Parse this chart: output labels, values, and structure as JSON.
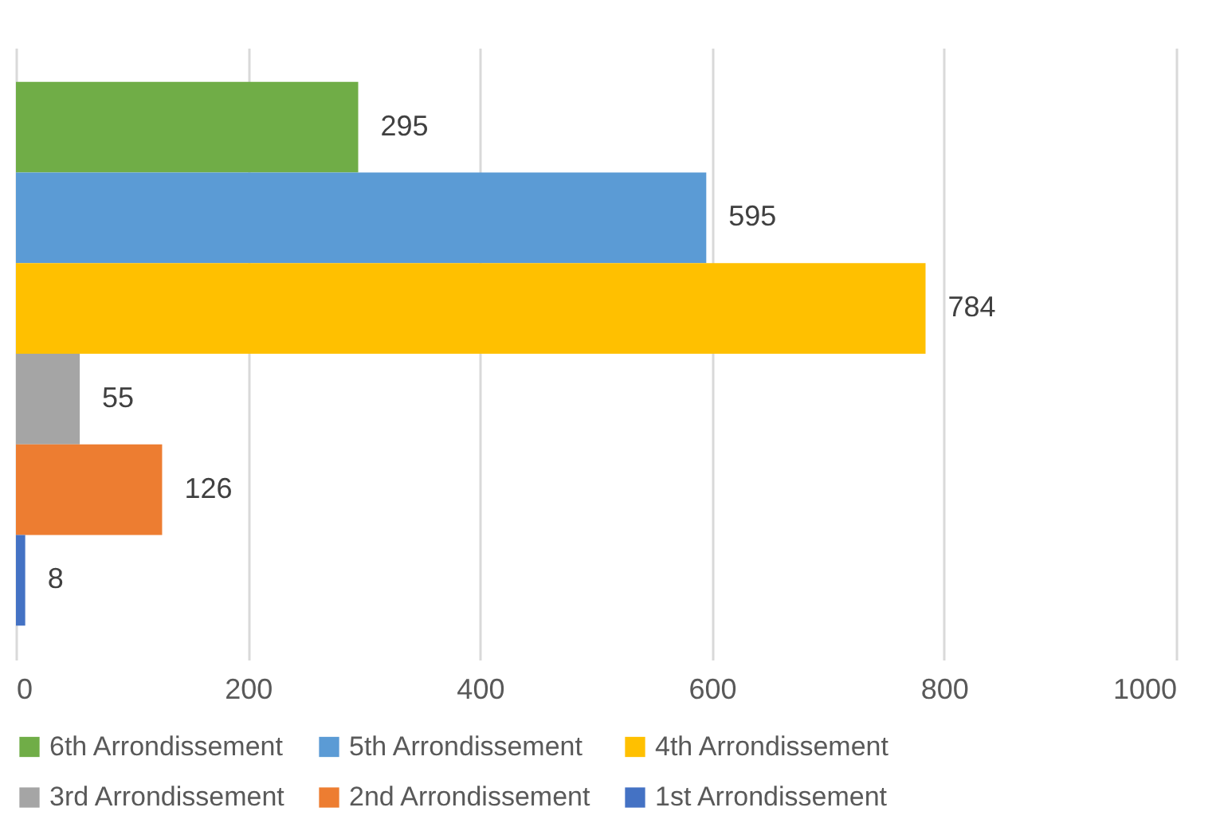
{
  "chart_data": {
    "type": "bar",
    "orientation": "horizontal",
    "categories": [
      null
    ],
    "series": [
      {
        "name": "6th Arrondissement",
        "color": "#70ad47",
        "values": [
          295
        ]
      },
      {
        "name": "5th Arrondissement",
        "color": "#5b9bd5",
        "values": [
          595
        ]
      },
      {
        "name": "4th Arrondissement",
        "color": "#ffc000",
        "values": [
          784
        ]
      },
      {
        "name": "3rd Arrondissement",
        "color": "#a5a5a5",
        "values": [
          55
        ]
      },
      {
        "name": "2nd Arrondissement",
        "color": "#ed7d31",
        "values": [
          126
        ]
      },
      {
        "name": "1st Arrondissement",
        "color": "#4472c4",
        "values": [
          8
        ]
      }
    ],
    "xlim": [
      0,
      1000
    ],
    "xticks": [
      0,
      200,
      400,
      600,
      800,
      1000
    ],
    "grid": "x",
    "legend": "bottom",
    "data_labels": true
  }
}
